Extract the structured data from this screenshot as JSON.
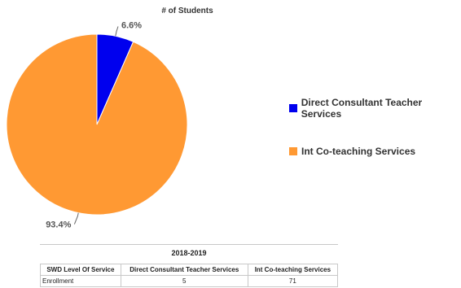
{
  "chart_data": {
    "type": "pie",
    "title": "# of Students",
    "slices": [
      {
        "name": "Direct Consultant Teacher Services",
        "value": 5,
        "percent_label": "6.6%",
        "color": "#0000ee"
      },
      {
        "name": "Int Co-teaching Services",
        "value": 71,
        "percent_label": "93.4%",
        "color": "#ff9933"
      }
    ],
    "legend_position": "right"
  },
  "table": {
    "caption": "2018-2019",
    "headers": [
      "SWD Level Of Service",
      "Direct Consultant Teacher Services",
      "Int Co-teaching Services"
    ],
    "rows": [
      [
        "Enrollment",
        "5",
        "71"
      ]
    ]
  }
}
